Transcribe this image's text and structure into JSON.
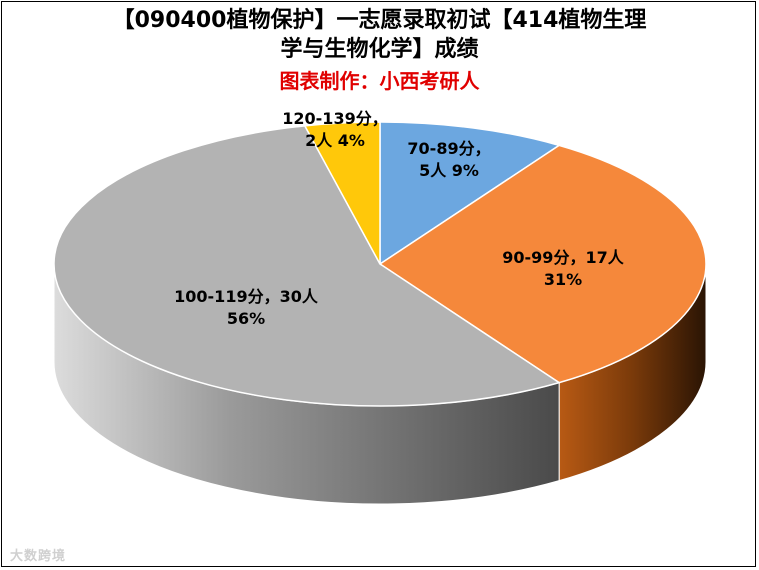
{
  "title_line1": "【090400植物保护】一志愿录取初试【414植物生理",
  "title_line2": "学与生物化学】成绩",
  "credit": "图表制作：小西考研人",
  "credit_color": "#e00000",
  "watermark": "大数跨境",
  "chart_data": {
    "type": "pie",
    "style": "3d",
    "slices": [
      {
        "category": "70-89分",
        "count": 5,
        "percent": 9,
        "color": "#6ca7e0",
        "label_line1": "70-89分，",
        "label_line2": "5人  9%"
      },
      {
        "category": "90-99分",
        "count": 17,
        "percent": 31,
        "color": "#f5883b",
        "label_line1": "90-99分，17人",
        "label_line2": "31%"
      },
      {
        "category": "100-119分",
        "count": 30,
        "percent": 56,
        "color": "#b3b3b3",
        "label_line1": "100-119分，30人",
        "label_line2": "56%"
      },
      {
        "category": "120-139分",
        "count": 2,
        "percent": 4,
        "color": "#ffc80a",
        "label_line1": "120-139分，",
        "label_line2": "2人 4%"
      }
    ]
  }
}
